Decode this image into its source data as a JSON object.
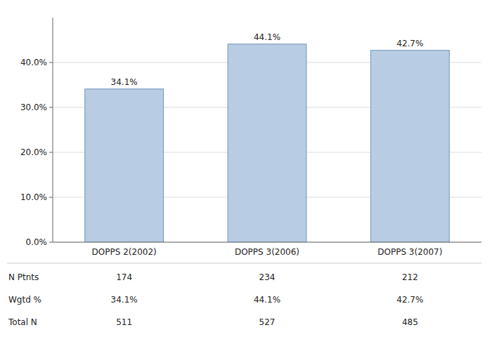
{
  "chart_data": {
    "type": "bar",
    "categories": [
      "DOPPS 2(2002)",
      "DOPPS 3(2006)",
      "DOPPS 3(2007)"
    ],
    "values": [
      34.1,
      44.1,
      42.7
    ],
    "value_labels": [
      "34.1%",
      "44.1%",
      "42.7%"
    ],
    "data_labels": true,
    "color": "#b8cce4",
    "ylim": [
      0,
      50
    ],
    "yticks": [
      {
        "value": 0,
        "label": "0.0%"
      },
      {
        "value": 10,
        "label": "10.0%"
      },
      {
        "value": 20,
        "label": "20.0%"
      },
      {
        "value": 30,
        "label": "30.0%"
      },
      {
        "value": 40,
        "label": "40.0%"
      }
    ],
    "grid": true,
    "table": {
      "row_labels": [
        "N Ptnts",
        "Wgtd %",
        "Total N"
      ],
      "rows": [
        [
          "174",
          "234",
          "212"
        ],
        [
          "34.1%",
          "44.1%",
          "42.7%"
        ],
        [
          "511",
          "527",
          "485"
        ]
      ]
    }
  }
}
